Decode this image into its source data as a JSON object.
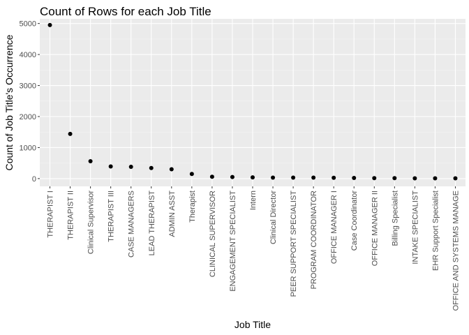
{
  "chart_data": {
    "type": "scatter",
    "title": "Count of Rows for each Job Title",
    "xlabel": "Job Title",
    "ylabel": "Count of Job Title's Occurrence",
    "ylim": [
      -250,
      5150
    ],
    "yticks": [
      0,
      1000,
      2000,
      3000,
      4000,
      5000
    ],
    "grid": true,
    "categories": [
      "THERAPIST I",
      "THERAPIST II",
      "Clinical Supervisor",
      "THERAPIST III",
      "CASE MANAGERS",
      "LEAD THERAPIST",
      "ADMIN ASST",
      "Therapist",
      "CLINICAL SUPERVISOR",
      "ENGAGEMENT SPECIALIST",
      "Intern",
      "Clinical Director",
      "PEER SUPPORT SPECIALIST",
      "PROGRAM COORDINATOR",
      "OFFICE MANAGER I",
      "Case Coordinator",
      "OFFICE MANAGER II",
      "Billing Specialist",
      "INTAKE SPECIALIST",
      "EHR Support Specialist",
      "OFFICE AND SYSTEMS MANAGE"
    ],
    "values": [
      4950,
      1440,
      560,
      390,
      380,
      340,
      300,
      150,
      60,
      50,
      40,
      30,
      30,
      30,
      25,
      20,
      15,
      15,
      10,
      10,
      10
    ],
    "colors": {
      "panel": "#ebebeb",
      "grid_major": "#ffffff",
      "point": "#000000",
      "tick_text": "#4d4d4d"
    }
  }
}
